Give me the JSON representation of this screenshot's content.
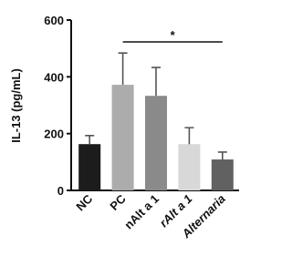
{
  "chart_data": {
    "type": "bar",
    "y_label": "IL-13 (pg/mL)",
    "categories": [
      "NC",
      "PC",
      "nAlt a 1",
      "rAlt a 1",
      "Alternaria"
    ],
    "values": [
      163,
      372,
      333,
      163,
      109
    ],
    "errors": [
      30,
      112,
      100,
      58,
      26
    ],
    "colors": [
      "#1c1c1c",
      "#acacac",
      "#8a8a8a",
      "#d8d8d8",
      "#616161"
    ],
    "italic": [
      false,
      false,
      false,
      true,
      true
    ],
    "ylim": [
      0,
      600
    ],
    "yticks": [
      0,
      200,
      400,
      600
    ],
    "annotation": "*"
  }
}
